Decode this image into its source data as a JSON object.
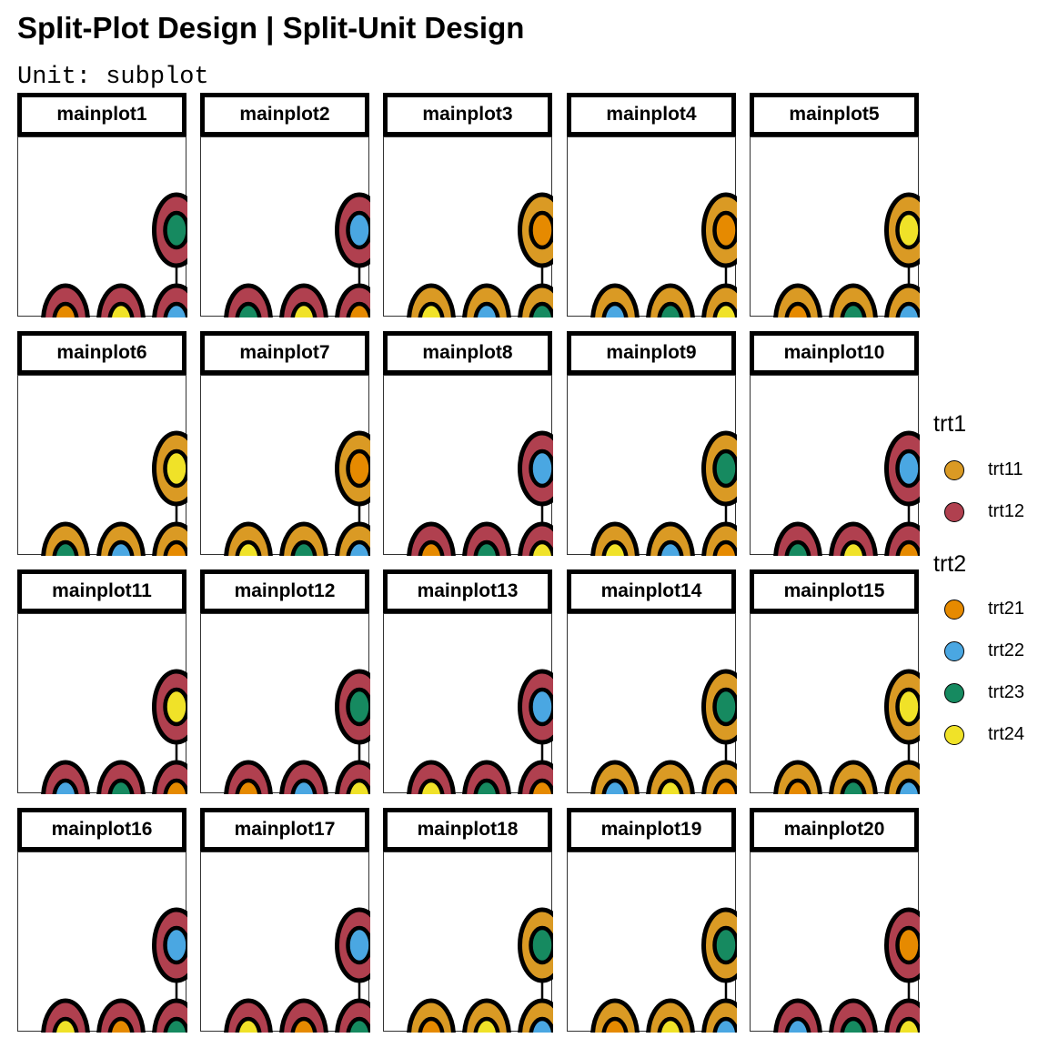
{
  "title": "Split-Plot Design | Split-Unit Design",
  "subtitle": "Unit: subplot",
  "colors": {
    "trt11": "#DA9A24",
    "trt12": "#B0404F",
    "trt21": "#E68A00",
    "trt22": "#4AA7E2",
    "trt23": "#168A60",
    "trt24": "#F0E228"
  },
  "legend": {
    "trt1": {
      "title": "trt1",
      "items": [
        "trt11",
        "trt12"
      ]
    },
    "trt2": {
      "title": "trt2",
      "items": [
        "trt21",
        "trt22",
        "trt23",
        "trt24"
      ]
    }
  },
  "panels": [
    {
      "label": "mainplot1",
      "trt1": "trt12",
      "subplots": [
        "trt21",
        "trt24",
        "trt22",
        "trt23"
      ]
    },
    {
      "label": "mainplot2",
      "trt1": "trt12",
      "subplots": [
        "trt23",
        "trt24",
        "trt21",
        "trt22"
      ]
    },
    {
      "label": "mainplot3",
      "trt1": "trt11",
      "subplots": [
        "trt24",
        "trt22",
        "trt23",
        "trt21"
      ]
    },
    {
      "label": "mainplot4",
      "trt1": "trt11",
      "subplots": [
        "trt22",
        "trt23",
        "trt24",
        "trt21"
      ]
    },
    {
      "label": "mainplot5",
      "trt1": "trt11",
      "subplots": [
        "trt21",
        "trt23",
        "trt22",
        "trt24"
      ]
    },
    {
      "label": "mainplot6",
      "trt1": "trt11",
      "subplots": [
        "trt23",
        "trt22",
        "trt21",
        "trt24"
      ]
    },
    {
      "label": "mainplot7",
      "trt1": "trt11",
      "subplots": [
        "trt24",
        "trt23",
        "trt22",
        "trt21"
      ]
    },
    {
      "label": "mainplot8",
      "trt1": "trt12",
      "subplots": [
        "trt21",
        "trt23",
        "trt24",
        "trt22"
      ]
    },
    {
      "label": "mainplot9",
      "trt1": "trt11",
      "subplots": [
        "trt24",
        "trt22",
        "trt21",
        "trt23"
      ]
    },
    {
      "label": "mainplot10",
      "trt1": "trt12",
      "subplots": [
        "trt23",
        "trt24",
        "trt21",
        "trt22"
      ]
    },
    {
      "label": "mainplot11",
      "trt1": "trt12",
      "subplots": [
        "trt22",
        "trt23",
        "trt21",
        "trt24"
      ]
    },
    {
      "label": "mainplot12",
      "trt1": "trt12",
      "subplots": [
        "trt21",
        "trt22",
        "trt24",
        "trt23"
      ]
    },
    {
      "label": "mainplot13",
      "trt1": "trt12",
      "subplots": [
        "trt24",
        "trt23",
        "trt21",
        "trt22"
      ]
    },
    {
      "label": "mainplot14",
      "trt1": "trt11",
      "subplots": [
        "trt22",
        "trt24",
        "trt21",
        "trt23"
      ]
    },
    {
      "label": "mainplot15",
      "trt1": "trt11",
      "subplots": [
        "trt21",
        "trt23",
        "trt22",
        "trt24"
      ]
    },
    {
      "label": "mainplot16",
      "trt1": "trt12",
      "subplots": [
        "trt24",
        "trt21",
        "trt23",
        "trt22"
      ]
    },
    {
      "label": "mainplot17",
      "trt1": "trt12",
      "subplots": [
        "trt24",
        "trt21",
        "trt23",
        "trt22"
      ]
    },
    {
      "label": "mainplot18",
      "trt1": "trt11",
      "subplots": [
        "trt21",
        "trt24",
        "trt22",
        "trt23"
      ]
    },
    {
      "label": "mainplot19",
      "trt1": "trt11",
      "subplots": [
        "trt21",
        "trt24",
        "trt22",
        "trt23"
      ]
    },
    {
      "label": "mainplot20",
      "trt1": "trt12",
      "subplots": [
        "trt22",
        "trt23",
        "trt24",
        "trt21"
      ]
    }
  ]
}
